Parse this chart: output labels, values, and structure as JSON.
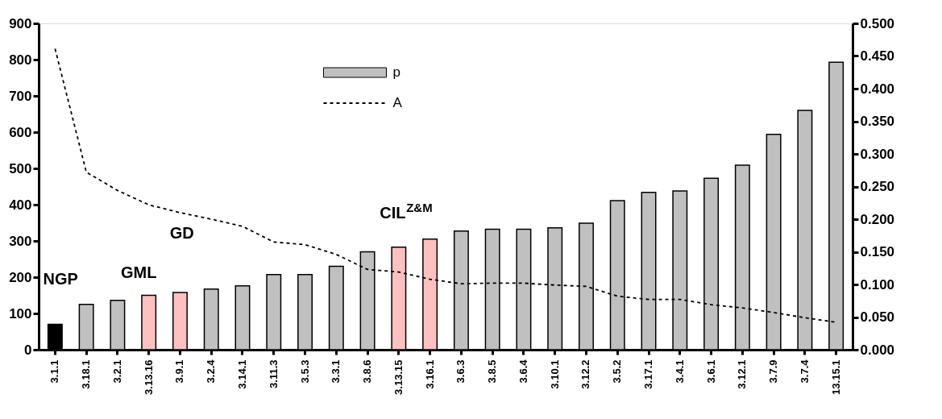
{
  "chart_data": {
    "type": "bar",
    "categories": [
      "3.1.1",
      "3.18.1",
      "3.2.1",
      "3.13.16",
      "3.9.1",
      "3.2.4",
      "3.14.1",
      "3.11.3",
      "3.5.3",
      "3.3.1",
      "3.8.6",
      "3.13.15",
      "3.16.1",
      "3.6.3",
      "3.8.5",
      "3.6.4",
      "3.10.1",
      "3.12.2",
      "3.5.2",
      "3.17.1",
      "3.4.1",
      "3.6.1",
      "3.12.1",
      "3.7.9",
      "3.7.4",
      "13.15.1"
    ],
    "series": [
      {
        "name": "p",
        "color": "#c0c0c0",
        "colors": [
          "#000000",
          "#c0c0c0",
          "#c0c0c0",
          "#ffc0c0",
          "#ffc0c0",
          "#c0c0c0",
          "#c0c0c0",
          "#c0c0c0",
          "#c0c0c0",
          "#c0c0c0",
          "#c0c0c0",
          "#ffc0c0",
          "#ffc0c0",
          "#c0c0c0",
          "#c0c0c0",
          "#c0c0c0",
          "#c0c0c0",
          "#c0c0c0",
          "#c0c0c0",
          "#c0c0c0",
          "#c0c0c0",
          "#c0c0c0",
          "#c0c0c0",
          "#c0c0c0",
          "#c0c0c0",
          "#c0c0c0"
        ],
        "values": [
          70,
          125,
          136,
          150,
          158,
          167,
          176,
          207,
          207,
          230,
          270,
          283,
          305,
          327,
          332,
          332,
          336,
          349,
          411,
          434,
          438,
          473,
          509,
          594,
          660,
          793
        ]
      },
      {
        "name": "A",
        "type": "line",
        "axis": "y2",
        "color": "#000000",
        "values": [
          0.461,
          0.272,
          0.244,
          0.222,
          0.21,
          0.2,
          0.189,
          0.165,
          0.161,
          0.146,
          0.123,
          0.119,
          0.108,
          0.101,
          0.102,
          0.102,
          0.099,
          0.097,
          0.082,
          0.077,
          0.077,
          0.069,
          0.064,
          0.057,
          0.049,
          0.042
        ]
      }
    ],
    "ylim": [
      0,
      900
    ],
    "yticks": [
      0,
      100,
      200,
      300,
      400,
      500,
      600,
      700,
      800,
      900
    ],
    "y2lim": [
      0,
      0.5
    ],
    "y2ticks": [
      {
        "value": 0,
        "label": "0.000"
      },
      {
        "value": 0.05,
        "label": "0.050"
      },
      {
        "value": 0.1,
        "label": "0.100"
      },
      {
        "value": 0.15,
        "label": "0.150"
      },
      {
        "value": 0.2,
        "label": "0.200"
      },
      {
        "value": 0.25,
        "label": "0.250"
      },
      {
        "value": 0.3,
        "label": "0.300"
      },
      {
        "value": 0.35,
        "label": "0.350"
      },
      {
        "value": 0.4,
        "label": "0.400"
      },
      {
        "value": 0.45,
        "label": "0.450"
      },
      {
        "value": 0.5,
        "label": "0.500"
      }
    ],
    "annotations": [
      "NGP",
      "GML",
      "GD",
      "CIL$^{Z&M}$"
    ],
    "legend": "top",
    "grid": false,
    "line_style": "dashed"
  }
}
